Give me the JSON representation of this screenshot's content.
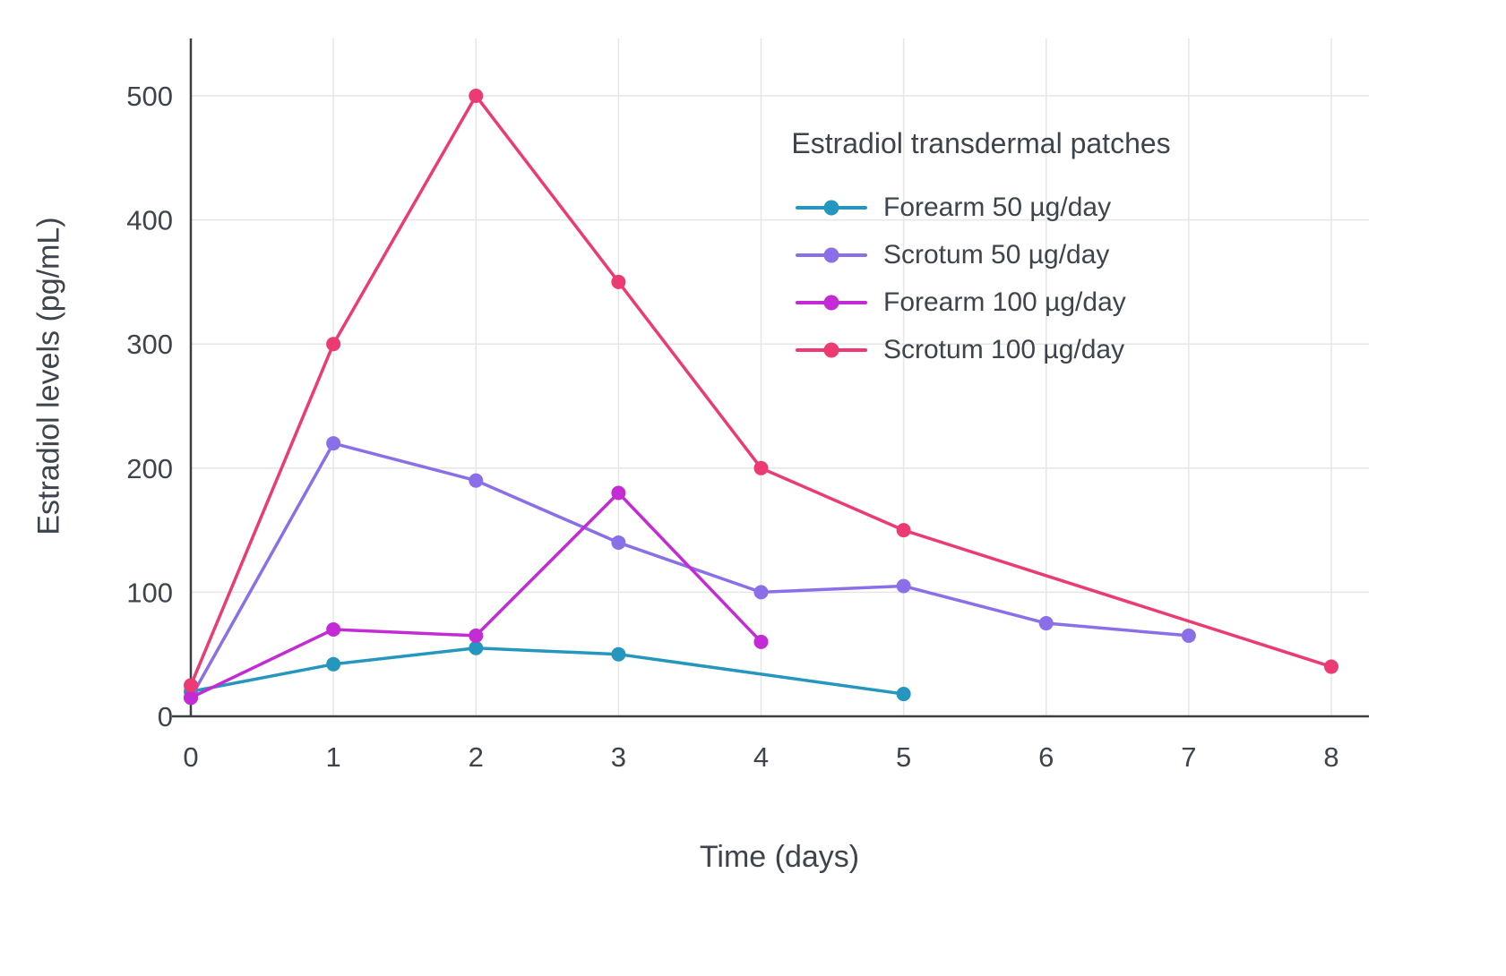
{
  "chart_data": {
    "type": "line",
    "legend_title": "Estradiol transdermal patches",
    "xlabel": "Time (days)",
    "ylabel": "Estradiol levels (pg/mL)",
    "xlim": [
      0,
      8
    ],
    "ylim": [
      0,
      545
    ],
    "x_ticks": [
      0,
      1,
      2,
      3,
      4,
      5,
      6,
      7,
      8
    ],
    "y_ticks": [
      0,
      100,
      200,
      300,
      400,
      500
    ],
    "grid": true,
    "legend_position": "top-right",
    "marker": "circle",
    "series": [
      {
        "name": "Forearm 50 µg/day",
        "color": "#2596be",
        "points": [
          [
            0,
            20
          ],
          [
            1,
            42
          ],
          [
            2,
            55
          ],
          [
            3,
            50
          ],
          [
            5,
            18
          ]
        ]
      },
      {
        "name": "Scrotum 50 µg/day",
        "color": "#8a6fe8",
        "points": [
          [
            0,
            15
          ],
          [
            1,
            220
          ],
          [
            2,
            190
          ],
          [
            3,
            140
          ],
          [
            4,
            100
          ],
          [
            5,
            105
          ],
          [
            6,
            75
          ],
          [
            7,
            65
          ]
        ]
      },
      {
        "name": "Forearm 100 µg/day",
        "color": "#c32bd5",
        "points": [
          [
            0,
            15
          ],
          [
            1,
            70
          ],
          [
            2,
            65
          ],
          [
            3,
            180
          ],
          [
            4,
            60
          ]
        ]
      },
      {
        "name": "Scrotum 100 µg/day",
        "color": "#ec3a72",
        "points": [
          [
            0,
            25
          ],
          [
            1,
            300
          ],
          [
            2,
            500
          ],
          [
            3,
            350
          ],
          [
            4,
            200
          ],
          [
            5,
            150
          ],
          [
            8,
            40
          ]
        ]
      }
    ],
    "colors": {
      "grid": "#e6e6e6",
      "axis": "#3a3f44",
      "text": "#3d444b"
    }
  }
}
